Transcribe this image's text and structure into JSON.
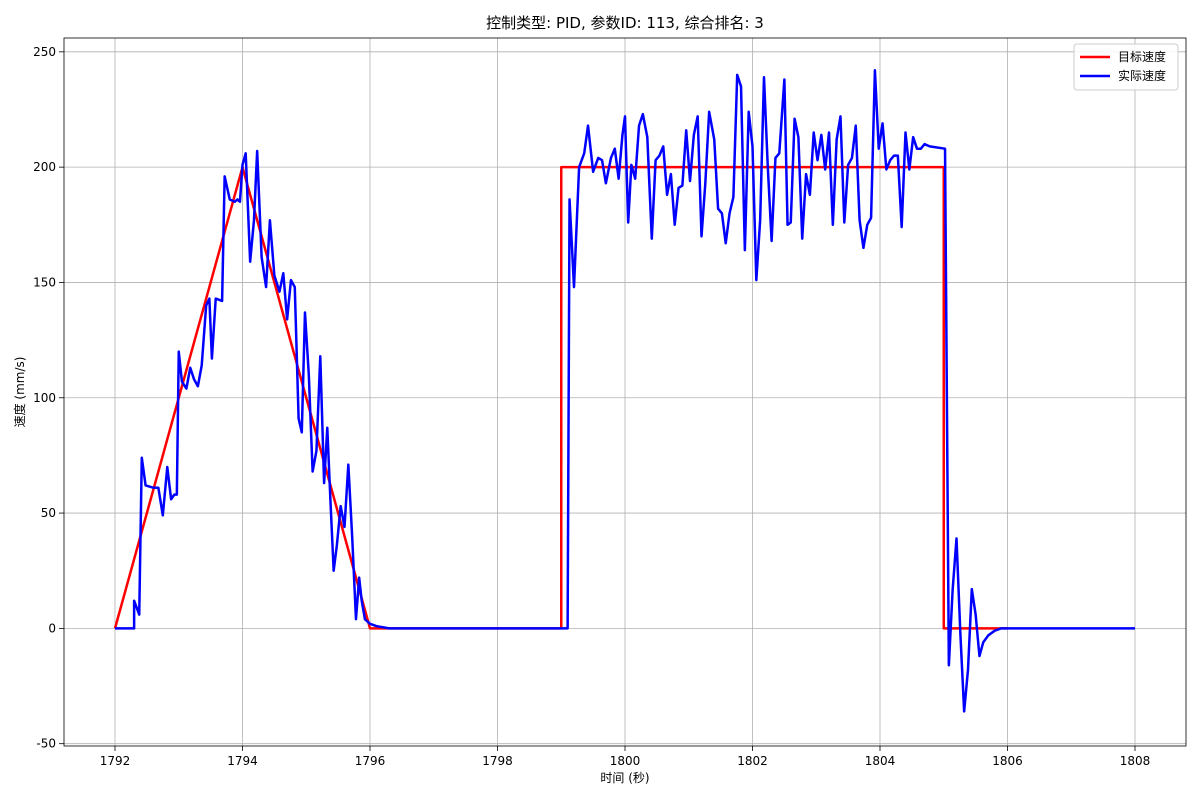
{
  "chart_data": {
    "type": "line",
    "title": "控制类型: PID, 参数ID: 113, 综合排名: 3",
    "xlabel": "时间 (秒)",
    "ylabel": "速度 (mm/s)",
    "xlim": [
      1791.2,
      1808.8
    ],
    "ylim": [
      -51,
      256
    ],
    "xticks": [
      1792,
      1794,
      1796,
      1798,
      1800,
      1802,
      1804,
      1806,
      1808
    ],
    "yticks": [
      -50,
      0,
      50,
      100,
      150,
      200,
      250
    ],
    "grid": true,
    "legend_position": "top-right",
    "series": [
      {
        "name": "目标速度",
        "color": "#ff0000",
        "points": [
          [
            1792.0,
            0
          ],
          [
            1794.0,
            200
          ],
          [
            1796.0,
            0
          ],
          [
            1799.0,
            0
          ],
          [
            1799.0,
            200
          ],
          [
            1805.0,
            200
          ],
          [
            1805.0,
            0
          ],
          [
            1806.0,
            0
          ]
        ]
      },
      {
        "name": "实际速度",
        "color": "#0000ff",
        "points": [
          [
            1792.0,
            0
          ],
          [
            1792.3,
            0
          ],
          [
            1792.3,
            12
          ],
          [
            1792.38,
            6
          ],
          [
            1792.42,
            74
          ],
          [
            1792.48,
            62
          ],
          [
            1792.6,
            61
          ],
          [
            1792.68,
            61
          ],
          [
            1792.75,
            49
          ],
          [
            1792.82,
            70
          ],
          [
            1792.88,
            56
          ],
          [
            1792.93,
            58
          ],
          [
            1792.97,
            58
          ],
          [
            1793.0,
            120
          ],
          [
            1793.05,
            107
          ],
          [
            1793.12,
            104
          ],
          [
            1793.18,
            113
          ],
          [
            1793.24,
            108
          ],
          [
            1793.3,
            105
          ],
          [
            1793.36,
            114
          ],
          [
            1793.43,
            140
          ],
          [
            1793.48,
            143
          ],
          [
            1793.52,
            117
          ],
          [
            1793.58,
            143
          ],
          [
            1793.68,
            142
          ],
          [
            1793.72,
            196
          ],
          [
            1793.8,
            186
          ],
          [
            1793.88,
            185
          ],
          [
            1793.92,
            186
          ],
          [
            1793.96,
            185
          ],
          [
            1794.0,
            201
          ],
          [
            1794.05,
            206
          ],
          [
            1794.12,
            159
          ],
          [
            1794.18,
            177
          ],
          [
            1794.23,
            207
          ],
          [
            1794.3,
            161
          ],
          [
            1794.37,
            148
          ],
          [
            1794.43,
            177
          ],
          [
            1794.5,
            153
          ],
          [
            1794.58,
            146
          ],
          [
            1794.64,
            154
          ],
          [
            1794.7,
            134
          ],
          [
            1794.76,
            151
          ],
          [
            1794.82,
            148
          ],
          [
            1794.88,
            91
          ],
          [
            1794.93,
            85
          ],
          [
            1794.98,
            137
          ],
          [
            1795.04,
            110
          ],
          [
            1795.1,
            68
          ],
          [
            1795.16,
            77
          ],
          [
            1795.22,
            118
          ],
          [
            1795.28,
            63
          ],
          [
            1795.33,
            87
          ],
          [
            1795.38,
            55
          ],
          [
            1795.43,
            25
          ],
          [
            1795.48,
            36
          ],
          [
            1795.54,
            53
          ],
          [
            1795.6,
            44
          ],
          [
            1795.66,
            71
          ],
          [
            1795.72,
            40
          ],
          [
            1795.78,
            4
          ],
          [
            1795.83,
            22
          ],
          [
            1795.87,
            12
          ],
          [
            1795.92,
            4
          ],
          [
            1796.0,
            2
          ],
          [
            1796.1,
            1
          ],
          [
            1796.3,
            0
          ],
          [
            1799.1,
            0
          ],
          [
            1799.13,
            186
          ],
          [
            1799.2,
            148
          ],
          [
            1799.28,
            200
          ],
          [
            1799.36,
            206
          ],
          [
            1799.42,
            218
          ],
          [
            1799.5,
            198
          ],
          [
            1799.58,
            204
          ],
          [
            1799.64,
            203
          ],
          [
            1799.7,
            193
          ],
          [
            1799.78,
            204
          ],
          [
            1799.84,
            208
          ],
          [
            1799.9,
            195
          ],
          [
            1799.96,
            214
          ],
          [
            1800.0,
            222
          ],
          [
            1800.05,
            176
          ],
          [
            1800.1,
            201
          ],
          [
            1800.16,
            195
          ],
          [
            1800.22,
            218
          ],
          [
            1800.28,
            223
          ],
          [
            1800.35,
            213
          ],
          [
            1800.42,
            169
          ],
          [
            1800.48,
            203
          ],
          [
            1800.54,
            205
          ],
          [
            1800.6,
            209
          ],
          [
            1800.66,
            188
          ],
          [
            1800.72,
            197
          ],
          [
            1800.78,
            175
          ],
          [
            1800.84,
            191
          ],
          [
            1800.9,
            192
          ],
          [
            1800.96,
            216
          ],
          [
            1801.02,
            194
          ],
          [
            1801.08,
            214
          ],
          [
            1801.14,
            222
          ],
          [
            1801.2,
            170
          ],
          [
            1801.26,
            193
          ],
          [
            1801.32,
            224
          ],
          [
            1801.4,
            212
          ],
          [
            1801.46,
            182
          ],
          [
            1801.52,
            180
          ],
          [
            1801.58,
            167
          ],
          [
            1801.64,
            180
          ],
          [
            1801.7,
            187
          ],
          [
            1801.76,
            240
          ],
          [
            1801.82,
            235
          ],
          [
            1801.88,
            164
          ],
          [
            1801.94,
            224
          ],
          [
            1802.0,
            209
          ],
          [
            1802.06,
            151
          ],
          [
            1802.12,
            177
          ],
          [
            1802.18,
            239
          ],
          [
            1802.24,
            200
          ],
          [
            1802.3,
            168
          ],
          [
            1802.36,
            204
          ],
          [
            1802.42,
            206
          ],
          [
            1802.5,
            238
          ],
          [
            1802.55,
            175
          ],
          [
            1802.6,
            176
          ],
          [
            1802.66,
            221
          ],
          [
            1802.72,
            213
          ],
          [
            1802.78,
            169
          ],
          [
            1802.84,
            197
          ],
          [
            1802.9,
            188
          ],
          [
            1802.96,
            215
          ],
          [
            1803.02,
            203
          ],
          [
            1803.08,
            214
          ],
          [
            1803.14,
            199
          ],
          [
            1803.2,
            215
          ],
          [
            1803.26,
            175
          ],
          [
            1803.32,
            212
          ],
          [
            1803.38,
            222
          ],
          [
            1803.44,
            176
          ],
          [
            1803.5,
            201
          ],
          [
            1803.56,
            204
          ],
          [
            1803.62,
            218
          ],
          [
            1803.68,
            177
          ],
          [
            1803.74,
            165
          ],
          [
            1803.8,
            175
          ],
          [
            1803.86,
            178
          ],
          [
            1803.92,
            242
          ],
          [
            1803.98,
            208
          ],
          [
            1804.04,
            219
          ],
          [
            1804.1,
            199
          ],
          [
            1804.16,
            203
          ],
          [
            1804.22,
            205
          ],
          [
            1804.28,
            205
          ],
          [
            1804.34,
            174
          ],
          [
            1804.4,
            215
          ],
          [
            1804.46,
            199
          ],
          [
            1804.52,
            213
          ],
          [
            1804.58,
            208
          ],
          [
            1804.64,
            208
          ],
          [
            1804.7,
            210
          ],
          [
            1804.78,
            209
          ],
          [
            1805.02,
            208
          ],
          [
            1805.08,
            -16
          ],
          [
            1805.14,
            17
          ],
          [
            1805.2,
            39
          ],
          [
            1805.26,
            -2
          ],
          [
            1805.32,
            -36
          ],
          [
            1805.38,
            -18
          ],
          [
            1805.44,
            17
          ],
          [
            1805.5,
            6
          ],
          [
            1805.56,
            -12
          ],
          [
            1805.62,
            -6
          ],
          [
            1805.7,
            -3
          ],
          [
            1805.8,
            -1
          ],
          [
            1805.9,
            0
          ],
          [
            1806.2,
            0
          ],
          [
            1808.0,
            0
          ]
        ]
      }
    ]
  }
}
